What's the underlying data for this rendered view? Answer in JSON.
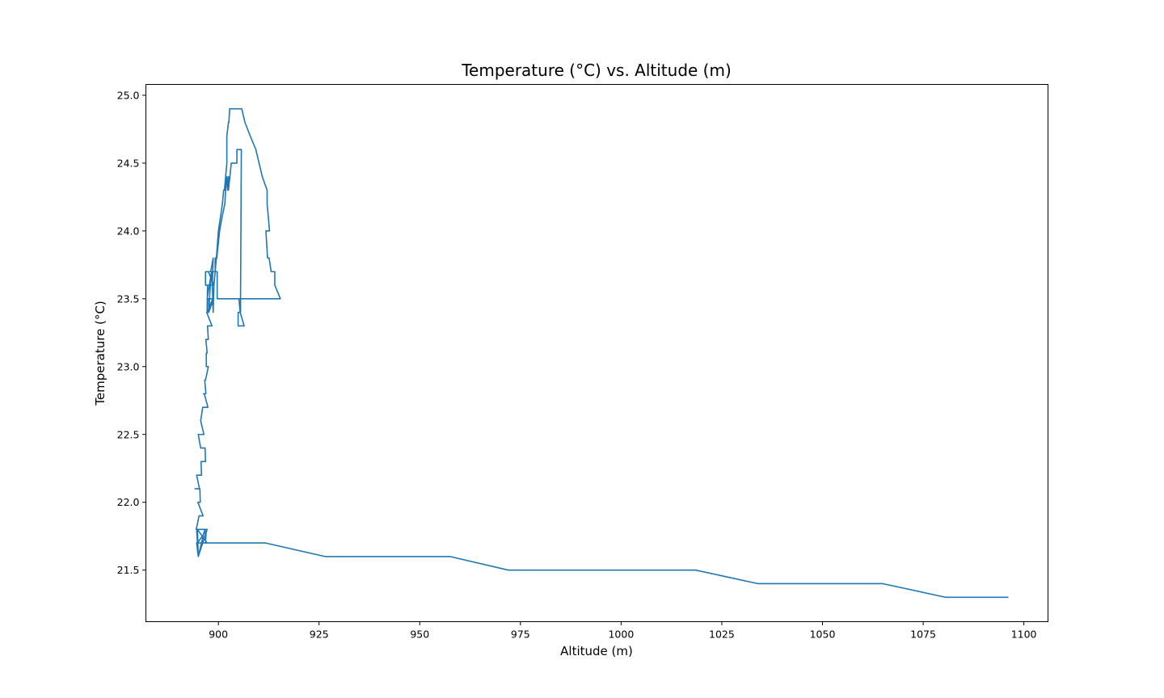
{
  "chart_data": {
    "type": "line",
    "title": "Temperature (°C) vs. Altitude (m)",
    "xlabel": "Altitude (m)",
    "ylabel": "Temperature (°C)",
    "xlim": [
      882,
      1106
    ],
    "ylim": [
      21.12,
      25.08
    ],
    "xticks": [
      900,
      925,
      950,
      975,
      1000,
      1025,
      1050,
      1075,
      1100
    ],
    "yticks": [
      21.5,
      22.0,
      22.5,
      23.0,
      23.5,
      24.0,
      24.5,
      25.0
    ],
    "grid": false,
    "series": [
      {
        "color": "#1f77b4",
        "x": [
          1096.0,
          1080.5,
          1065.0,
          1049.5,
          1034.0,
          1018.5,
          1003.0,
          987.5,
          972.0,
          957.5,
          942.0,
          926.5,
          911.7,
          894.8,
          896.8,
          897.0,
          894.6,
          894.8,
          897.2,
          895.0,
          894.8,
          897.2,
          894.6,
          895.0,
          896.6,
          894.5,
          895.2,
          896.2,
          894.9,
          895.5,
          895.4,
          894.2,
          895.3,
          894.6,
          895.8,
          895.7,
          896.0,
          895.9,
          896.8,
          896.7,
          895.6,
          895.0,
          896.4,
          895.6,
          896.1,
          897.4,
          896.5,
          896.3,
          896.9,
          896.6,
          896.8,
          897.5,
          897.0,
          897.0,
          897.2,
          896.9,
          897.5,
          897.3,
          898.4,
          897.1,
          897.6,
          897.6,
          898.6,
          897.2,
          897.3,
          898.9,
          897.5,
          899.0,
          898.3,
          897.2,
          898.8,
          897.6,
          898.0,
          898.5,
          898.4,
          898.1,
          898.7,
          898.5,
          898.7,
          898.9,
          899.5,
          900.0,
          900.5,
          901.0,
          901.3,
          901.5,
          901.8,
          902.1,
          902.1,
          902.5,
          902.6,
          902.8,
          902.9,
          903.2,
          903.6,
          904.5,
          905.8,
          906.6,
          906.6,
          907.9,
          907.9,
          909.3,
          909.3,
          910.1,
          910.1,
          910.9,
          910.9,
          912.1,
          912.1,
          912.7,
          911.8,
          912.2,
          912.6,
          913.1,
          914.0,
          914.0,
          915.4,
          905.5,
          903.4,
          903.4,
          902.1,
          902.1,
          899.7,
          899.7,
          896.8,
          896.8,
          898.0,
          898.4,
          899.2,
          899.2,
          899.6,
          900.3,
          900.9,
          901.6,
          901.8,
          902.1,
          902.3,
          902.5,
          902.5,
          903.2,
          903.2,
          904.6,
          904.6,
          905.7,
          905.7,
          905.5,
          905.5,
          904.9,
          904.9,
          905.9,
          905.9,
          906.4,
          905.4,
          905.1,
          904.8
        ],
        "y": [
          21.3,
          21.3,
          21.4,
          21.4,
          21.4,
          21.5,
          21.5,
          21.5,
          21.5,
          21.6,
          21.6,
          21.6,
          21.7,
          21.7,
          21.7,
          21.8,
          21.8,
          21.7,
          21.8,
          21.6,
          21.8,
          21.7,
          21.7,
          21.6,
          21.8,
          21.8,
          21.9,
          21.9,
          22.0,
          22.0,
          22.1,
          22.1,
          22.1,
          22.2,
          22.2,
          22.3,
          22.3,
          22.3,
          22.3,
          22.4,
          22.4,
          22.5,
          22.5,
          22.6,
          22.7,
          22.7,
          22.8,
          22.8,
          22.8,
          22.9,
          22.9,
          23.0,
          23.0,
          23.1,
          23.1,
          23.2,
          23.2,
          23.3,
          23.3,
          23.4,
          23.4,
          23.5,
          23.5,
          23.4,
          23.6,
          23.6,
          23.7,
          23.7,
          23.7,
          23.5,
          23.5,
          23.4,
          23.6,
          23.6,
          23.7,
          23.7,
          23.8,
          23.6,
          23.4,
          23.6,
          23.8,
          24.0,
          24.1,
          24.2,
          24.3,
          24.3,
          24.4,
          24.5,
          24.7,
          24.8,
          24.8,
          24.9,
          24.9,
          24.9,
          24.9,
          24.9,
          24.9,
          24.8,
          24.8,
          24.7,
          24.7,
          24.6,
          24.6,
          24.5,
          24.5,
          24.4,
          24.4,
          24.3,
          24.2,
          24.0,
          24.0,
          23.8,
          23.8,
          23.7,
          23.7,
          23.6,
          23.5,
          23.5,
          23.5,
          23.5,
          23.5,
          23.5,
          23.5,
          23.7,
          23.7,
          23.6,
          23.6,
          23.7,
          23.7,
          23.8,
          23.8,
          24.0,
          24.1,
          24.2,
          24.3,
          24.4,
          24.3,
          24.4,
          24.3,
          24.5,
          24.5,
          24.5,
          24.6,
          24.6,
          24.6,
          23.5,
          23.4,
          23.4,
          23.3,
          23.3,
          23.3,
          23.3,
          23.4,
          23.5,
          23.5
        ]
      }
    ]
  }
}
